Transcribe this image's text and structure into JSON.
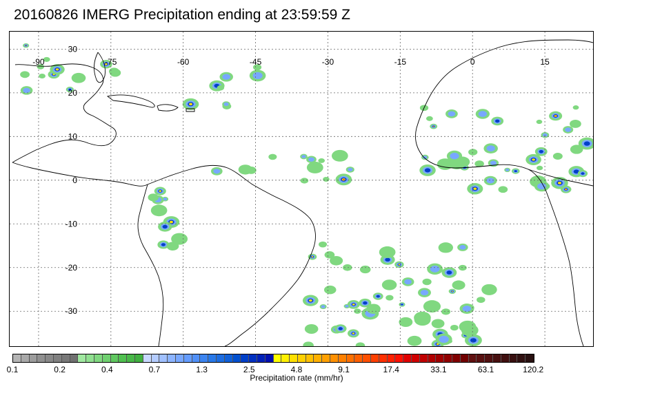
{
  "title": "20160826 IMERG Precipitation ending at 23:59:59 Z",
  "map": {
    "lon_labels": [
      "-90",
      "-75",
      "-60",
      "-45",
      "-30",
      "-15",
      "0",
      "15"
    ],
    "lat_labels": [
      "30",
      "20",
      "10",
      "0",
      "-10",
      "-20",
      "-30"
    ],
    "lon_range": [
      -96,
      25
    ],
    "lat_range": [
      -38,
      34
    ]
  },
  "colorbar": {
    "label": "Precipitation rate (mm/hr)",
    "ticks": [
      "0.1",
      "0.2",
      "0.4",
      "0.7",
      "1.3",
      "2.5",
      "4.8",
      "9.1",
      "17.4",
      "33.1",
      "63.1",
      "120.2"
    ],
    "colors": [
      "#b4b4b4",
      "#a8a8a8",
      "#9c9c9c",
      "#909090",
      "#888888",
      "#808080",
      "#787878",
      "#707070",
      "#a0e8a0",
      "#90e090",
      "#80d880",
      "#70d070",
      "#60c860",
      "#50c050",
      "#48b848",
      "#40b040",
      "#c8d8ff",
      "#b4ccff",
      "#a0c0ff",
      "#8cb4ff",
      "#78a8ff",
      "#649cff",
      "#5090f8",
      "#3c84f0",
      "#2878e8",
      "#1c6ce0",
      "#1060d8",
      "#0050d0",
      "#0040c8",
      "#0030c0",
      "#0020b8",
      "#0010b0",
      "#ffff00",
      "#fff000",
      "#ffe000",
      "#ffd000",
      "#ffc000",
      "#ffb000",
      "#ffa000",
      "#ff9000",
      "#ff8000",
      "#ff7000",
      "#ff6000",
      "#ff5000",
      "#ff4000",
      "#ff3000",
      "#ff2000",
      "#ff1000",
      "#e00000",
      "#d00000",
      "#c00000",
      "#b00000",
      "#a00000",
      "#900000",
      "#800000",
      "#700000",
      "#601010",
      "#581010",
      "#501010",
      "#481010",
      "#401010",
      "#381010",
      "#301010",
      "#281010"
    ]
  }
}
